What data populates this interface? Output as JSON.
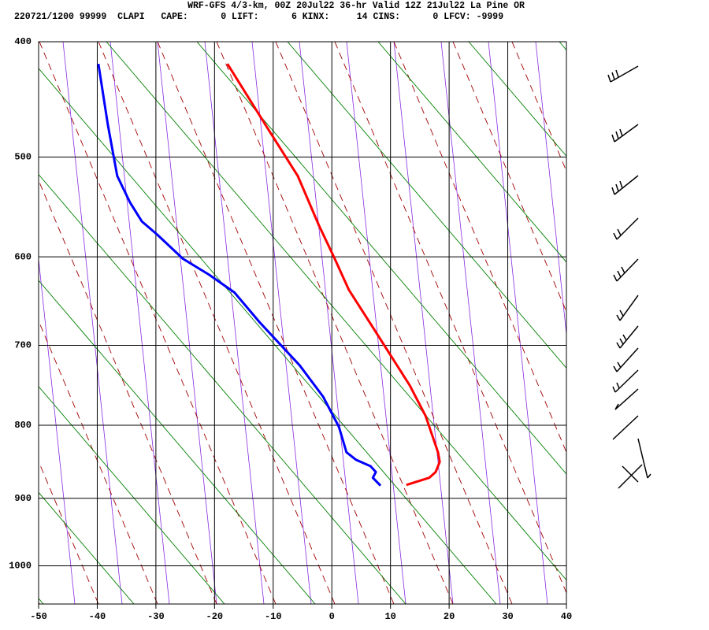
{
  "chart_data": {
    "type": "line",
    "title": "WRF-GFS 4/3-km, 00Z 20Jul22 36-hr Valid 12Z 21Jul22 La Pine OR",
    "subtitle": "220721/1200 99999  CLAPI   CAPE:      0 LIFT:      6 KINX:     14 CINS:      0 LFCV: -9999",
    "xlim": [
      -50,
      40
    ],
    "xticks": [
      -50,
      -40,
      -30,
      -20,
      -10,
      0,
      10,
      20,
      30,
      40
    ],
    "ylim": [
      400,
      1060
    ],
    "yticks": [
      400,
      500,
      600,
      700,
      800,
      900,
      1000
    ],
    "y_inverted": true,
    "grid": true,
    "series": [
      {
        "color": "#ff0000",
        "x": [
          -17.8,
          -10.9,
          -5.8,
          -2.2,
          0.5,
          2.9,
          7.2,
          10.2,
          13.3,
          16.0,
          18.1,
          18.4,
          17.7,
          16.6,
          12.7
        ],
        "values": [
          418,
          474,
          518,
          567,
          602,
          636,
          681,
          714,
          749,
          788,
          836,
          849,
          863,
          871,
          881
        ]
      },
      {
        "color": "#0000ff",
        "x": [
          -39.8,
          -38.2,
          -36.6,
          -34.4,
          -32.4,
          -29.7,
          -25.4,
          -21.0,
          -16.6,
          -12.3,
          -5.5,
          -1.5,
          1.2,
          2.5,
          4.1,
          6.6,
          7.5,
          7.0,
          8.3
        ],
        "values": [
          418,
          470,
          518,
          544,
          563,
          577,
          602,
          619,
          639,
          673,
          724,
          763,
          802,
          836,
          846,
          855,
          863,
          871,
          882
        ]
      }
    ]
  }
}
